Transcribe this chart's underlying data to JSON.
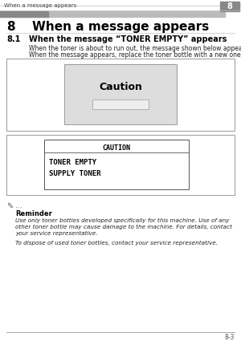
{
  "bg_color": "#ffffff",
  "header_text": "When a message appears",
  "header_num": "8",
  "chapter_title_num": "8",
  "chapter_title_text": "When a message appears",
  "section_num": "8.1",
  "section_text": "When the message “TONER EMPTY” appears",
  "body_line1": "When the toner is about to run out, the message shown below appears.",
  "body_line2": "When the message appears, replace the toner bottle with a new one.",
  "caution_label": "Caution",
  "screen_lines": [
    "CAUTION",
    "TONER EMPTY",
    "SUPPLY TONER"
  ],
  "reminder_dots": "...",
  "reminder_label": "Reminder",
  "reminder_body1": "Use only toner bottles developed specifically for this machine. Use of any",
  "reminder_body2": "other toner bottle may cause damage to the machine. For details, contact",
  "reminder_body3": "your service representative.",
  "reminder_body4": "To dispose of used toner bottles, contact your service representative.",
  "footer_text": "8-3",
  "header_bar_color": "#888888",
  "header_bg_color": "#cccccc",
  "header_num_bg": "#888888",
  "gradient_bar_color": "#bbbbbb",
  "outer_box_edge": "#999999",
  "inner_box_fill": "#dddddd",
  "inner_box_edge": "#999999",
  "small_rect_fill": "#eeeeee",
  "small_rect_edge": "#aaaaaa",
  "msg_outer_edge": "#999999",
  "msg_inner_edge": "#555555",
  "footer_line_color": "#aaaaaa",
  "text_dark": "#111111",
  "text_body": "#222222",
  "text_italic": "#222222"
}
